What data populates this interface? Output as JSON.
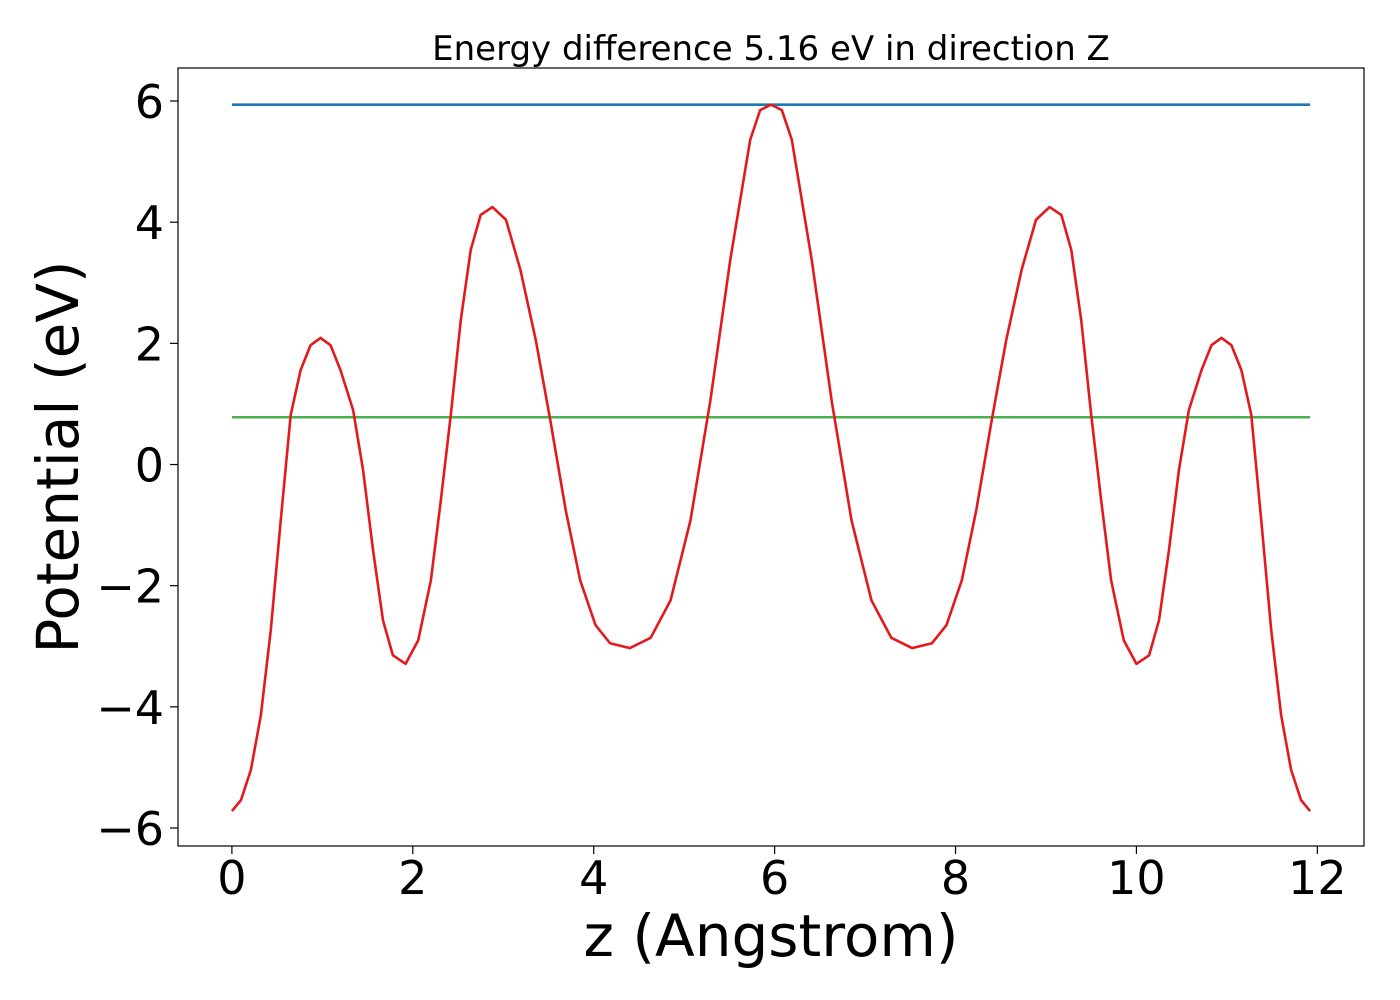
{
  "chart_data": {
    "type": "line",
    "title": "Energy difference 5.16 eV in direction Z",
    "x_label": "z (Angstrom)",
    "y_label": "Potential (eV)",
    "xlim": [
      -0.596,
      12.516
    ],
    "ylim": [
      -6.297,
      6.545
    ],
    "xticks": [
      0,
      2,
      4,
      6,
      8,
      10,
      12
    ],
    "yticks": [
      {
        "value": -6,
        "label": "−6"
      },
      {
        "value": -4,
        "label": "−4"
      },
      {
        "value": -2,
        "label": "−2"
      },
      0,
      2,
      4,
      6
    ],
    "grid": false,
    "series": [
      {
        "color": "#1f77b4",
        "x": [
          0,
          11.92
        ],
        "values": [
          5.94,
          5.94
        ]
      },
      {
        "color": "#4caf50",
        "x": [
          0,
          11.92
        ],
        "values": [
          0.78,
          0.78
        ]
      },
      {
        "color": "#e31a1c",
        "x": [
          0,
          0.1,
          0.21,
          0.32,
          0.43,
          0.54,
          0.65,
          0.76,
          0.87,
          0.98,
          1.09,
          1.2,
          1.34,
          1.45,
          1.56,
          1.67,
          1.78,
          1.92,
          2.06,
          2.2,
          2.31,
          2.42,
          2.53,
          2.64,
          2.75,
          2.88,
          3.03,
          3.19,
          3.36,
          3.52,
          3.69,
          3.85,
          4.02,
          4.18,
          4.4,
          4.63,
          4.85,
          5.07,
          5.29,
          5.51,
          5.73,
          5.84,
          5.96,
          6.08,
          6.19,
          6.41,
          6.63,
          6.85,
          7.07,
          7.29,
          7.52,
          7.74,
          7.9,
          8.07,
          8.23,
          8.4,
          8.56,
          8.73,
          8.89,
          9.04,
          9.17,
          9.28,
          9.39,
          9.5,
          9.61,
          9.72,
          9.86,
          10.0,
          10.14,
          10.25,
          10.36,
          10.47,
          10.58,
          10.72,
          10.83,
          10.94,
          11.05,
          11.16,
          11.27,
          11.38,
          11.49,
          11.6,
          11.71,
          11.82,
          11.92
        ],
        "values": [
          -5.72,
          -5.54,
          -5.04,
          -4.14,
          -2.73,
          -0.92,
          0.82,
          1.56,
          1.97,
          2.09,
          1.97,
          1.56,
          0.9,
          -0.09,
          -1.41,
          -2.57,
          -3.15,
          -3.29,
          -2.9,
          -1.91,
          -0.59,
          0.82,
          2.38,
          3.54,
          4.12,
          4.25,
          4.04,
          3.21,
          2.05,
          0.73,
          -0.75,
          -1.91,
          -2.65,
          -2.95,
          -3.03,
          -2.86,
          -2.24,
          -0.92,
          1.06,
          3.38,
          5.36,
          5.85,
          5.94,
          5.85,
          5.36,
          3.38,
          1.06,
          -0.92,
          -2.24,
          -2.86,
          -3.03,
          -2.95,
          -2.65,
          -1.91,
          -0.75,
          0.73,
          2.05,
          3.21,
          4.04,
          4.25,
          4.12,
          3.54,
          2.38,
          0.82,
          -0.59,
          -1.91,
          -2.9,
          -3.29,
          -3.15,
          -2.57,
          -1.41,
          -0.09,
          0.9,
          1.56,
          1.97,
          2.09,
          1.97,
          1.56,
          0.82,
          -0.92,
          -2.73,
          -4.14,
          -5.04,
          -5.54,
          -5.72
        ]
      }
    ]
  }
}
